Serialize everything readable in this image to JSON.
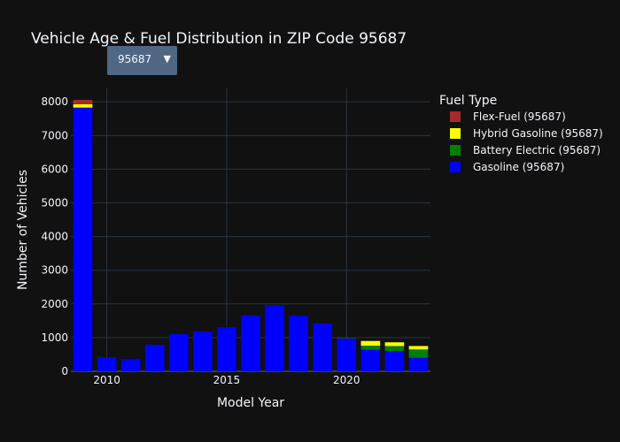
{
  "title": "Vehicle Age & Fuel Distribution in ZIP Code 95687",
  "dropdown": {
    "selected": "95687",
    "arrow": "▼"
  },
  "colors": {
    "background": "#111111",
    "grid": "#283442",
    "text": "#f2f5fa",
    "dropdown_bg": "#506784"
  },
  "chart_data": {
    "type": "bar",
    "barmode": "stack",
    "xlabel": "Model Year",
    "ylabel": "Number of Vehicles",
    "x": [
      2009,
      2010,
      2011,
      2012,
      2013,
      2014,
      2015,
      2016,
      2017,
      2018,
      2019,
      2020,
      2021,
      2022,
      2023
    ],
    "xlim": [
      2008.5,
      2023.5
    ],
    "ylim": [
      0,
      8400
    ],
    "xticks": [
      2010,
      2015,
      2020
    ],
    "yticks": [
      0,
      1000,
      2000,
      3000,
      4000,
      5000,
      6000,
      7000,
      8000
    ],
    "legend": {
      "title": "Fuel Type",
      "placement": "right"
    },
    "grid": true,
    "series": [
      {
        "name": "Gasoline (95687)",
        "color": "#0000ff",
        "values": [
          7830,
          420,
          360,
          790,
          1100,
          1180,
          1310,
          1660,
          1960,
          1650,
          1420,
          970,
          640,
          600,
          400
        ]
      },
      {
        "name": "Battery Electric (95687)",
        "color": "#008000",
        "values": [
          0,
          0,
          0,
          0,
          0,
          0,
          0,
          0,
          0,
          0,
          0,
          10,
          120,
          150,
          250
        ]
      },
      {
        "name": "Hybrid Gasoline (95687)",
        "color": "#ffff00",
        "values": [
          100,
          0,
          0,
          0,
          0,
          0,
          0,
          0,
          0,
          0,
          0,
          0,
          140,
          110,
          100
        ]
      },
      {
        "name": "Flex-Fuel (95687)",
        "color": "#a52a2a",
        "values": [
          130,
          0,
          0,
          0,
          0,
          0,
          0,
          0,
          0,
          0,
          0,
          0,
          0,
          0,
          0
        ]
      }
    ],
    "legend_order": [
      "Flex-Fuel (95687)",
      "Hybrid Gasoline (95687)",
      "Battery Electric (95687)",
      "Gasoline (95687)"
    ]
  }
}
